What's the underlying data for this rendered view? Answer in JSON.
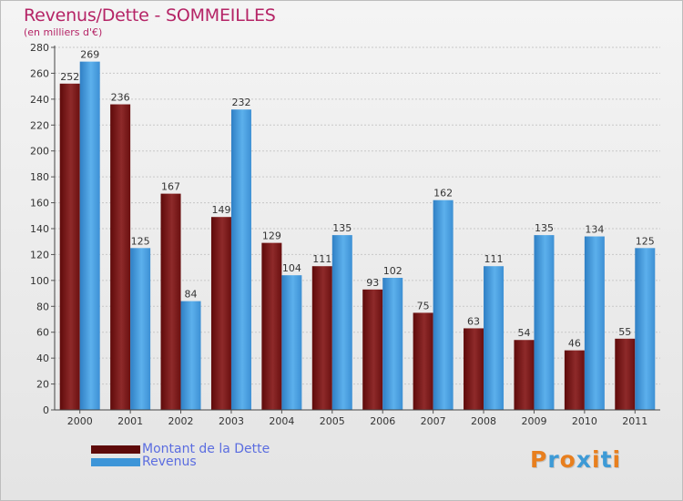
{
  "header": {
    "title": "Revenus/Dette - SOMMEILLES",
    "subtitle": "(en milliers d'€)"
  },
  "colors": {
    "dette": "#7f1a1a",
    "revenus": "#3d95d8",
    "title": "#b52466",
    "legend_text": "#5b6de0"
  },
  "legend": {
    "items": [
      {
        "label": "Montant de la Dette",
        "color": "#7f1a1a"
      },
      {
        "label": "Revenus",
        "color": "#3d95d8"
      }
    ]
  },
  "brand": {
    "text": "Proxiti",
    "letter_colors": [
      "#e87f1e",
      "#3d9ad6",
      "#e87f1e",
      "#3d9ad6",
      "#e87f1e",
      "#3d9ad6",
      "#e87f1e"
    ]
  },
  "chart_data": {
    "type": "bar",
    "title": "Revenus/Dette - SOMMEILLES",
    "subtitle": "(en milliers d'€)",
    "categories": [
      "2000",
      "2001",
      "2002",
      "2003",
      "2004",
      "2005",
      "2006",
      "2007",
      "2008",
      "2009",
      "2010",
      "2011"
    ],
    "series": [
      {
        "name": "Montant de la Dette",
        "values": [
          252,
          236,
          167,
          149,
          129,
          111,
          93,
          75,
          63,
          54,
          46,
          55
        ]
      },
      {
        "name": "Revenus",
        "values": [
          269,
          125,
          84,
          232,
          104,
          135,
          102,
          162,
          111,
          135,
          134,
          125
        ]
      }
    ],
    "ylim": [
      0,
      280
    ],
    "yticks": [
      0,
      20,
      40,
      60,
      80,
      100,
      120,
      140,
      160,
      180,
      200,
      220,
      240,
      260,
      280
    ],
    "grid": true,
    "legend_position": "bottom-left"
  }
}
